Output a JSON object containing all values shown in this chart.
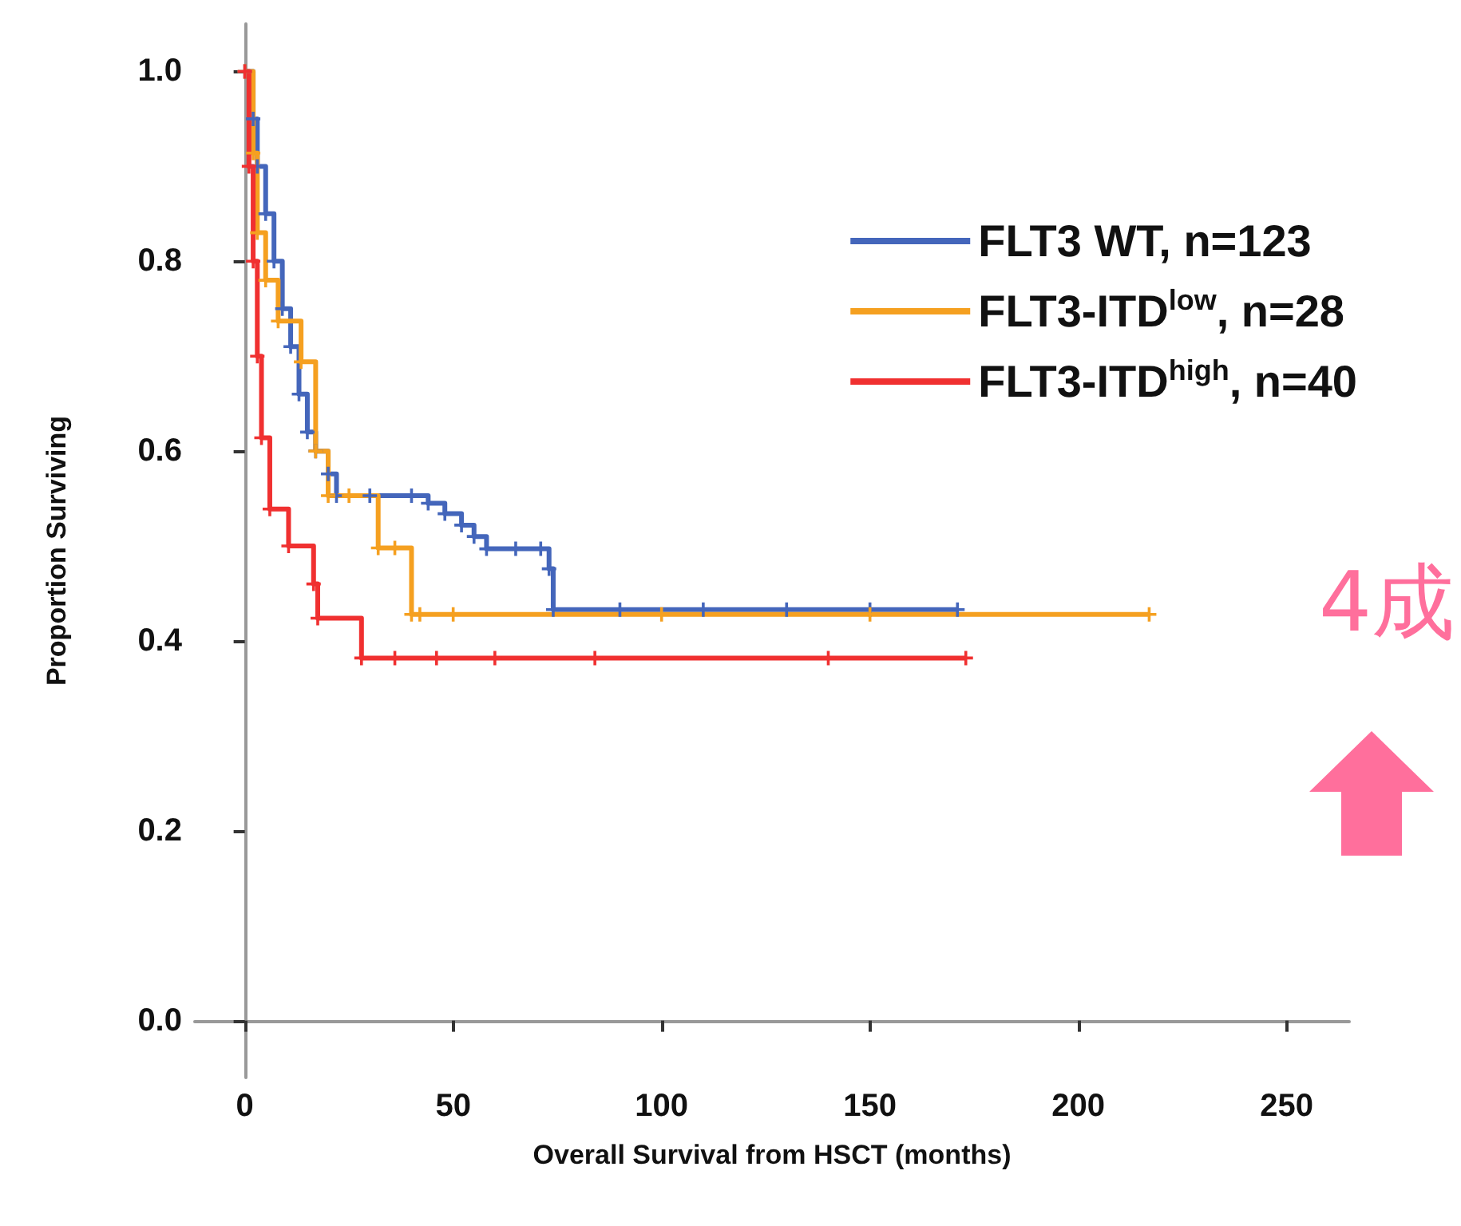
{
  "chart_data": {
    "type": "step",
    "xlabel": "Overall Survival from HSCT (months)",
    "ylabel": "Proportion Surviving",
    "xlim": [
      -12,
      265
    ],
    "ylim": [
      -0.06,
      1.05
    ],
    "xticks": [
      0,
      50,
      100,
      150,
      200,
      250
    ],
    "yticks": [
      {
        "value": 0,
        "label": "0.0"
      },
      {
        "value": 0.2,
        "label": "0.2"
      },
      {
        "value": 0.4,
        "label": "0.4"
      },
      {
        "value": 0.6,
        "label": "0.6"
      },
      {
        "value": 0.8,
        "label": "0.8"
      },
      {
        "value": 1,
        "label": "1.0"
      }
    ],
    "grid": false,
    "legend": "top right",
    "marker": "cross",
    "line_style": "solid",
    "annotations": [
      "4成"
    ],
    "series": [
      {
        "name": "FLT3 WT, n=123",
        "color": "#4466bb",
        "x": [
          0,
          2,
          3,
          5,
          7,
          9,
          11,
          13,
          15,
          17,
          20,
          22,
          30,
          40,
          44,
          48,
          52,
          55,
          58,
          65,
          71,
          73,
          74,
          90,
          110,
          130,
          150,
          171
        ],
        "values": [
          1.0,
          0.95,
          0.9,
          0.85,
          0.8,
          0.75,
          0.71,
          0.66,
          0.62,
          0.6,
          0.576,
          0.553,
          0.553,
          0.553,
          0.545,
          0.534,
          0.522,
          0.51,
          0.497,
          0.497,
          0.497,
          0.476,
          0.433,
          0.433,
          0.433,
          0.433,
          0.433,
          0.433
        ]
      },
      {
        "name": "FLT3-ITD$^{low}$, n=28",
        "color": "#f5a020",
        "x": [
          0,
          2,
          3,
          5,
          8,
          13.5,
          17,
          20,
          25,
          32,
          36,
          40,
          42,
          50,
          100,
          150,
          217
        ],
        "values": [
          1.0,
          0.914,
          0.83,
          0.78,
          0.737,
          0.694,
          0.6,
          0.553,
          0.553,
          0.498,
          0.498,
          0.428,
          0.428,
          0.428,
          0.428,
          0.428,
          0.428
        ]
      },
      {
        "name": "FLT3-ITD$^{high}$, n=40",
        "color": "#f03030",
        "x": [
          0,
          1,
          2,
          3,
          4,
          6,
          10.5,
          16.5,
          17.5,
          28,
          36,
          46,
          60,
          84,
          140,
          173
        ],
        "values": [
          1.0,
          0.9,
          0.8,
          0.7,
          0.614,
          0.539,
          0.5,
          0.46,
          0.424,
          0.382,
          0.382,
          0.382,
          0.382,
          0.382,
          0.382,
          0.382
        ]
      }
    ]
  }
}
